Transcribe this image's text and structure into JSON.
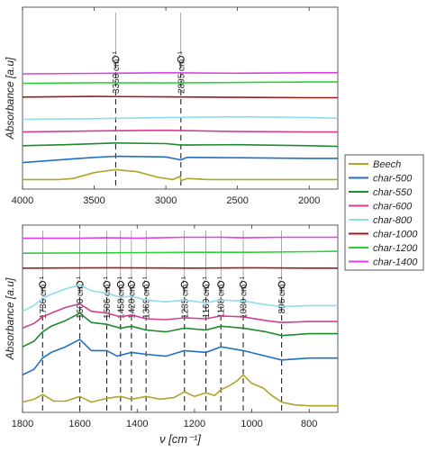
{
  "chart_data": [
    {
      "type": "line",
      "panel": "top",
      "xlabel": "",
      "ylabel": "Absorbance [a.u]",
      "xlim": [
        4000,
        1800
      ],
      "x_reversed": true,
      "ylim": [
        0,
        8.6
      ],
      "y_ticks_shown": false,
      "grid": false,
      "x_ticks": [
        4000,
        3500,
        3000,
        2500,
        2000
      ],
      "x_tick_labels": [
        "4000",
        "3500",
        "3000",
        "2500",
        "2000"
      ],
      "annotations": [
        {
          "x": 3350,
          "label": "3350 cm⁻¹"
        },
        {
          "x": 2895,
          "label": "2895 cm⁻¹"
        }
      ],
      "series": [
        {
          "name": "Beech",
          "color": "#b2a32a",
          "x": [
            4000,
            3750,
            3650,
            3500,
            3350,
            3200,
            3050,
            2950,
            2900,
            2895,
            2850,
            2700,
            2500,
            2200,
            1800
          ],
          "y": [
            0.45,
            0.45,
            0.5,
            0.78,
            0.92,
            0.82,
            0.55,
            0.45,
            0.6,
            0.4,
            0.5,
            0.45,
            0.45,
            0.45,
            0.45
          ]
        },
        {
          "name": "char-500",
          "color": "#1f6fc5",
          "x": [
            4000,
            3700,
            3500,
            3350,
            3000,
            2895,
            2850,
            2500,
            2000,
            1800
          ],
          "y": [
            1.25,
            1.4,
            1.5,
            1.55,
            1.52,
            1.38,
            1.5,
            1.48,
            1.45,
            1.45
          ]
        },
        {
          "name": "char-550",
          "color": "#1e8a2c",
          "x": [
            4000,
            3700,
            3350,
            3000,
            2895,
            2500,
            2000,
            1800
          ],
          "y": [
            2.05,
            2.1,
            2.18,
            2.15,
            2.08,
            2.1,
            2.05,
            2.02
          ]
        },
        {
          "name": "char-600",
          "color": "#d33f8f",
          "x": [
            4000,
            3500,
            3000,
            2500,
            2000,
            1800
          ],
          "y": [
            2.7,
            2.75,
            2.78,
            2.72,
            2.7,
            2.7
          ]
        },
        {
          "name": "char-800",
          "color": "#8fdcea",
          "x": [
            4000,
            3500,
            3000,
            2500,
            2000,
            1800
          ],
          "y": [
            3.3,
            3.33,
            3.38,
            3.42,
            3.38,
            3.35
          ]
        },
        {
          "name": "char-1000",
          "color": "#9c1b1f",
          "x": [
            4000,
            3500,
            3000,
            2500,
            2000,
            1800
          ],
          "y": [
            4.35,
            4.38,
            4.36,
            4.34,
            4.32,
            4.32
          ]
        },
        {
          "name": "char-1200",
          "color": "#2ed13a",
          "x": [
            4000,
            3500,
            3000,
            2500,
            2000,
            1800
          ],
          "y": [
            5.0,
            5.03,
            5.02,
            5.04,
            5.06,
            5.06
          ]
        },
        {
          "name": "char-1400",
          "color": "#dd3fe0",
          "x": [
            4000,
            3500,
            3000,
            2500,
            2000,
            1800
          ],
          "y": [
            5.45,
            5.47,
            5.5,
            5.48,
            5.5,
            5.5
          ]
        }
      ]
    },
    {
      "type": "line",
      "panel": "bottom",
      "xlabel": "ν [cm⁻¹]",
      "ylabel": "Absorbance [a.u]",
      "xlim": [
        1800,
        700
      ],
      "x_reversed": true,
      "ylim": [
        0,
        10
      ],
      "y_ticks_shown": false,
      "grid": false,
      "x_ticks": [
        1800,
        1600,
        1400,
        1200,
        1000,
        800
      ],
      "x_tick_labels": [
        "1800",
        "1600",
        "1400",
        "1200",
        "1000",
        "800"
      ],
      "annotations": [
        {
          "x": 1730,
          "label": "1730 cm⁻¹"
        },
        {
          "x": 1600,
          "label": "1600 cm⁻¹"
        },
        {
          "x": 1506,
          "label": "1506 cm⁻¹"
        },
        {
          "x": 1458,
          "label": "1458 cm⁻¹"
        },
        {
          "x": 1420,
          "label": "1420 cm⁻¹"
        },
        {
          "x": 1369,
          "label": "1369 cm⁻¹"
        },
        {
          "x": 1235,
          "label": "1235 cm⁻¹"
        },
        {
          "x": 1160,
          "label": "1160 cm⁻¹"
        },
        {
          "x": 1108,
          "label": "1108 cm⁻¹"
        },
        {
          "x": 1030,
          "label": "1030 cm⁻¹"
        },
        {
          "x": 896,
          "label": "896 cm⁻¹"
        }
      ],
      "series": [
        {
          "name": "Beech",
          "color": "#b2a32a",
          "x": [
            1800,
            1760,
            1730,
            1690,
            1650,
            1600,
            1560,
            1506,
            1458,
            1420,
            1369,
            1320,
            1270,
            1235,
            1200,
            1160,
            1130,
            1108,
            1070,
            1050,
            1030,
            1000,
            960,
            930,
            896,
            850,
            800,
            700
          ],
          "y": [
            0.55,
            0.7,
            0.95,
            0.6,
            0.6,
            0.85,
            0.55,
            0.75,
            0.85,
            0.7,
            0.85,
            0.7,
            0.8,
            1.1,
            0.85,
            1.05,
            0.9,
            1.2,
            1.5,
            1.7,
            2.0,
            1.55,
            1.3,
            0.9,
            0.55,
            0.4,
            0.35,
            0.35
          ]
        },
        {
          "name": "char-500",
          "color": "#1f6fc5",
          "x": [
            1800,
            1760,
            1730,
            1700,
            1650,
            1600,
            1560,
            1506,
            1470,
            1420,
            1369,
            1300,
            1235,
            1160,
            1108,
            1030,
            950,
            896,
            800,
            700
          ],
          "y": [
            2.0,
            2.3,
            2.9,
            3.2,
            3.5,
            3.9,
            3.3,
            3.3,
            3.0,
            3.2,
            3.1,
            3.0,
            3.3,
            3.2,
            3.5,
            3.3,
            3.0,
            2.8,
            2.9,
            2.9
          ]
        },
        {
          "name": "char-550",
          "color": "#1e8a2c",
          "x": [
            1800,
            1760,
            1730,
            1700,
            1650,
            1600,
            1560,
            1506,
            1458,
            1420,
            1369,
            1300,
            1235,
            1160,
            1108,
            1030,
            950,
            896,
            800,
            700
          ],
          "y": [
            3.5,
            3.8,
            4.3,
            4.6,
            4.9,
            5.3,
            4.8,
            4.7,
            4.5,
            4.6,
            4.4,
            4.3,
            4.5,
            4.4,
            4.6,
            4.5,
            4.3,
            4.1,
            4.2,
            4.2
          ]
        },
        {
          "name": "char-600",
          "color": "#d33f8f",
          "x": [
            1800,
            1760,
            1730,
            1700,
            1650,
            1600,
            1560,
            1506,
            1458,
            1420,
            1369,
            1300,
            1235,
            1160,
            1108,
            1030,
            950,
            896,
            800,
            700
          ],
          "y": [
            4.5,
            4.75,
            5.1,
            5.3,
            5.6,
            5.8,
            5.4,
            5.3,
            5.1,
            5.2,
            5.0,
            4.95,
            5.05,
            5.0,
            5.15,
            5.1,
            4.9,
            4.8,
            4.85,
            4.85
          ]
        },
        {
          "name": "char-800",
          "color": "#8fdcea",
          "x": [
            1800,
            1760,
            1730,
            1700,
            1650,
            1600,
            1560,
            1506,
            1458,
            1420,
            1369,
            1300,
            1235,
            1160,
            1108,
            1030,
            950,
            896,
            800,
            700
          ],
          "y": [
            5.4,
            5.7,
            6.1,
            6.3,
            6.6,
            6.8,
            6.5,
            6.35,
            6.15,
            6.2,
            6.0,
            5.9,
            6.0,
            5.85,
            6.0,
            5.95,
            5.75,
            5.65,
            5.7,
            5.7
          ]
        },
        {
          "name": "char-1000",
          "color": "#9c1b1f",
          "x": [
            1800,
            1500,
            1200,
            1000,
            800,
            700
          ],
          "y": [
            7.7,
            7.72,
            7.7,
            7.72,
            7.7,
            7.7
          ]
        },
        {
          "name": "char-1200",
          "color": "#2ed13a",
          "x": [
            1800,
            1500,
            1200,
            1000,
            800,
            700
          ],
          "y": [
            8.5,
            8.52,
            8.55,
            8.55,
            8.58,
            8.6
          ]
        },
        {
          "name": "char-1400",
          "color": "#dd3fe0",
          "x": [
            1800,
            1600,
            1506,
            1400,
            1235,
            1108,
            1030,
            896,
            800,
            700
          ],
          "y": [
            9.3,
            9.3,
            9.32,
            9.3,
            9.35,
            9.35,
            9.32,
            9.35,
            9.35,
            9.35
          ]
        }
      ]
    }
  ],
  "legend": {
    "placement": "right-middle",
    "entries": [
      "Beech",
      "char-500",
      "char-550",
      "char-600",
      "char-800",
      "char-1000",
      "char-1200",
      "char-1400"
    ]
  }
}
